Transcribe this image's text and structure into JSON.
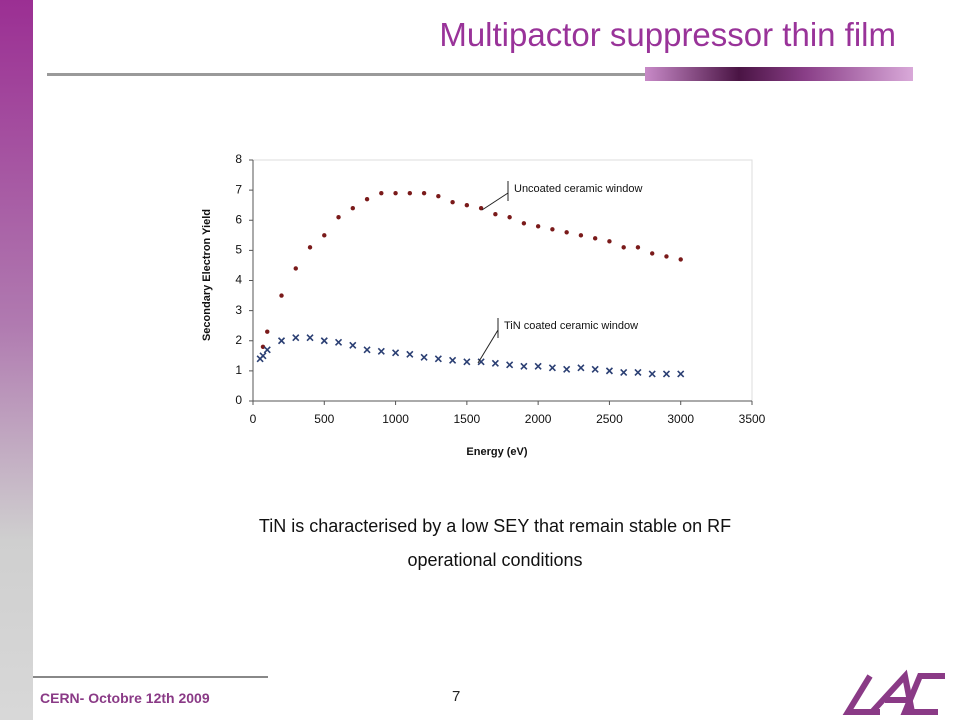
{
  "slide": {
    "title": "Multipactor suppressor thin film",
    "caption_lines": [
      "TiN is characterised by a low SEY that remain stable on RF",
      "operational conditions"
    ],
    "footer": "CERN- Octobre 12th 2009",
    "page_number": "7"
  },
  "chart_data": {
    "type": "scatter",
    "x_label": "Energy (eV)",
    "y_label": "Secondary Electron Yield",
    "xlim": [
      0,
      3500
    ],
    "xticks": [
      0,
      500,
      1000,
      1500,
      2000,
      2500,
      3000,
      3500
    ],
    "ylim": [
      0,
      8
    ],
    "yticks": [
      0,
      1,
      2,
      3,
      4,
      5,
      6,
      7,
      8
    ],
    "grid": false,
    "annotations": [
      "Uncoated ceramic window",
      "TiN coated ceramic window"
    ],
    "series": [
      {
        "name": "Uncoated ceramic window",
        "color": "#7a1a1a",
        "marker": "dot",
        "x": [
          70,
          100,
          200,
          300,
          400,
          500,
          600,
          700,
          800,
          900,
          1000,
          1100,
          1200,
          1300,
          1400,
          1500,
          1600,
          1700,
          1800,
          1900,
          2000,
          2100,
          2200,
          2300,
          2400,
          2500,
          2600,
          2700,
          2800,
          2900,
          3000
        ],
        "values": [
          1.8,
          2.3,
          3.5,
          4.4,
          5.1,
          5.5,
          6.1,
          6.4,
          6.7,
          6.9,
          6.9,
          6.9,
          6.9,
          6.8,
          6.6,
          6.5,
          6.4,
          6.2,
          6.1,
          5.9,
          5.8,
          5.7,
          5.6,
          5.5,
          5.4,
          5.3,
          5.1,
          5.1,
          4.9,
          4.8,
          4.7
        ]
      },
      {
        "name": "TiN coated ceramic window",
        "color": "#2b3f73",
        "marker": "cross",
        "x": [
          50,
          70,
          100,
          200,
          300,
          400,
          500,
          600,
          700,
          800,
          900,
          1000,
          1100,
          1200,
          1300,
          1400,
          1500,
          1600,
          1700,
          1800,
          1900,
          2000,
          2100,
          2200,
          2300,
          2400,
          2500,
          2600,
          2700,
          2800,
          2900,
          3000
        ],
        "values": [
          1.4,
          1.5,
          1.7,
          2.0,
          2.1,
          2.1,
          2.0,
          1.95,
          1.85,
          1.7,
          1.65,
          1.6,
          1.55,
          1.45,
          1.4,
          1.35,
          1.3,
          1.3,
          1.25,
          1.2,
          1.15,
          1.15,
          1.1,
          1.05,
          1.1,
          1.05,
          1.0,
          0.95,
          0.95,
          0.9,
          0.9,
          0.9
        ]
      }
    ]
  }
}
